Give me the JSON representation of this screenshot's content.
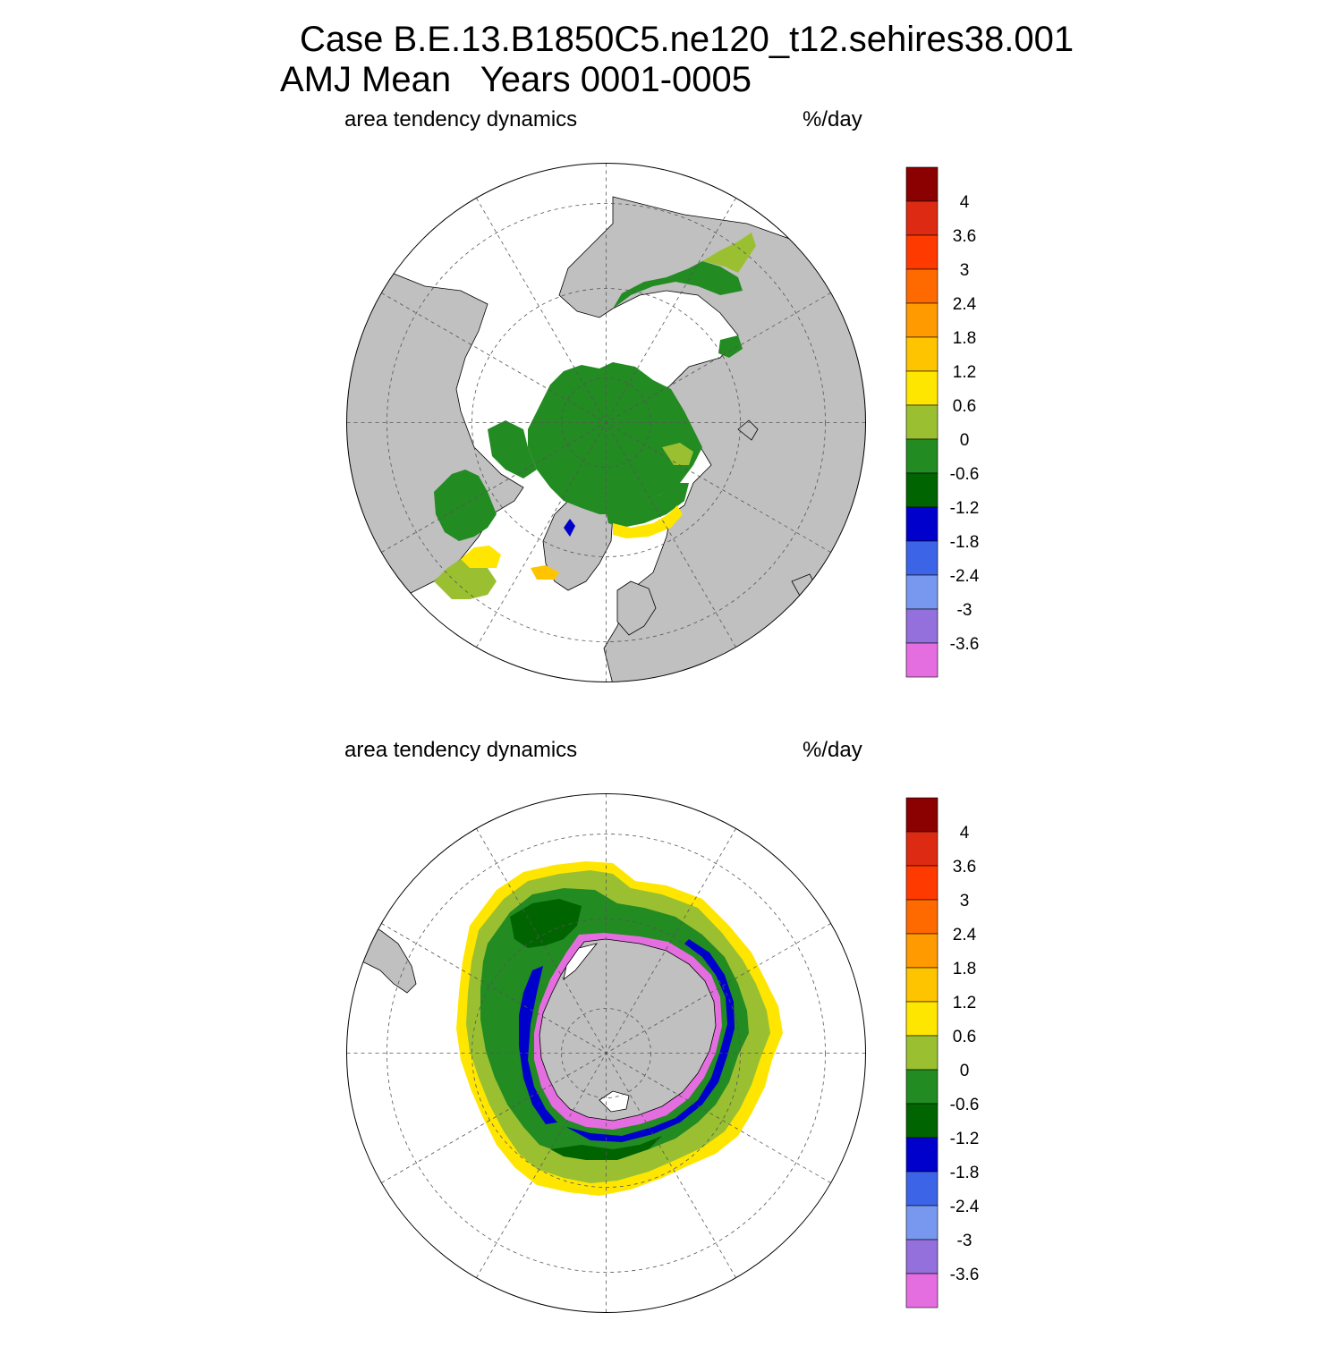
{
  "figure": {
    "title_line1": "Case B.E.13.B1850C5.ne120_t12.sehires38.001",
    "title_line2": "AMJ Mean   Years 0001-0005"
  },
  "panels": [
    {
      "id": "north",
      "left_title": "area tendency dynamics",
      "right_title": "%/day"
    },
    {
      "id": "south",
      "left_title": "area tendency dynamics",
      "right_title": "%/day"
    }
  ],
  "colorbar": {
    "labels": [
      "4",
      "3.6",
      "3",
      "2.4",
      "1.8",
      "1.2",
      "0.6",
      "0",
      "-0.6",
      "-1.2",
      "-1.8",
      "-2.4",
      "-3",
      "-3.6"
    ],
    "colors": [
      "#8b0000",
      "#dc2b12",
      "#ff3a00",
      "#ff6a00",
      "#ff9a00",
      "#ffc400",
      "#ffe600",
      "#9ac032",
      "#228b22",
      "#006400",
      "#0000cd",
      "#3c64e6",
      "#7898f0",
      "#9370db",
      "#e46ee0"
    ]
  },
  "style": {
    "land": "#c0c0c0",
    "ocean": "#ffffff",
    "ice_main": "#228b22",
    "ice_light": "#9ac032",
    "ice_dark": "#006400",
    "ice_yellow": "#ffe600",
    "ice_orange": "#ffc400",
    "ice_blue": "#0000cd",
    "ice_pink": "#e46ee0"
  }
}
